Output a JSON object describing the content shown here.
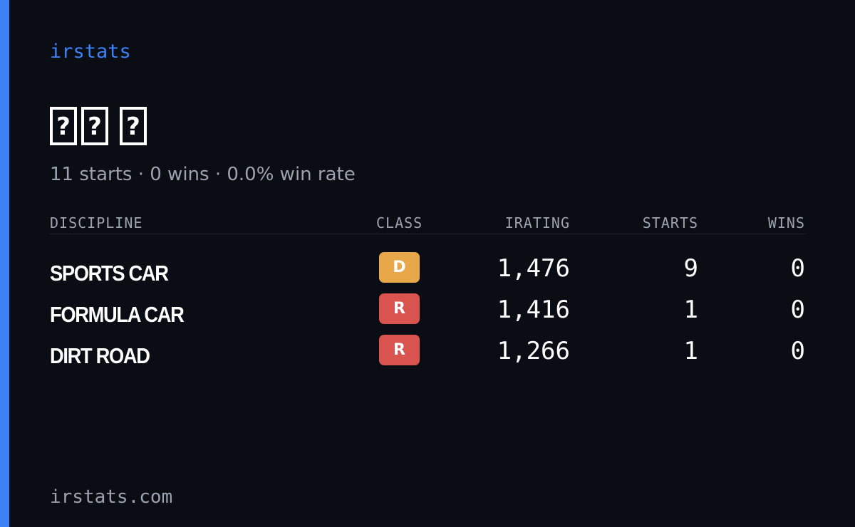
{
  "brand": "irstats",
  "driver": {
    "name_glyphs": [
      "?",
      "?",
      "?"
    ]
  },
  "summary": "11 starts · 0 wins · 0.0% win rate",
  "table": {
    "headers": {
      "discipline": "DISCIPLINE",
      "class": "CLASS",
      "irating": "IRATING",
      "starts": "STARTS",
      "wins": "WINS"
    },
    "rows": [
      {
        "discipline": "SPORTS CAR",
        "class": "D",
        "class_color": "#e8a84a",
        "irating": "1,476",
        "starts": "9",
        "wins": "0"
      },
      {
        "discipline": "FORMULA CAR",
        "class": "R",
        "class_color": "#d9534f",
        "irating": "1,416",
        "starts": "1",
        "wins": "0"
      },
      {
        "discipline": "DIRT ROAD",
        "class": "R",
        "class_color": "#d9534f",
        "irating": "1,266",
        "starts": "1",
        "wins": "0"
      }
    ]
  },
  "footer": "irstats.com",
  "colors": {
    "accent": "#3b82f6",
    "background": "#0a0d14",
    "muted_text": "#9ca3af"
  }
}
